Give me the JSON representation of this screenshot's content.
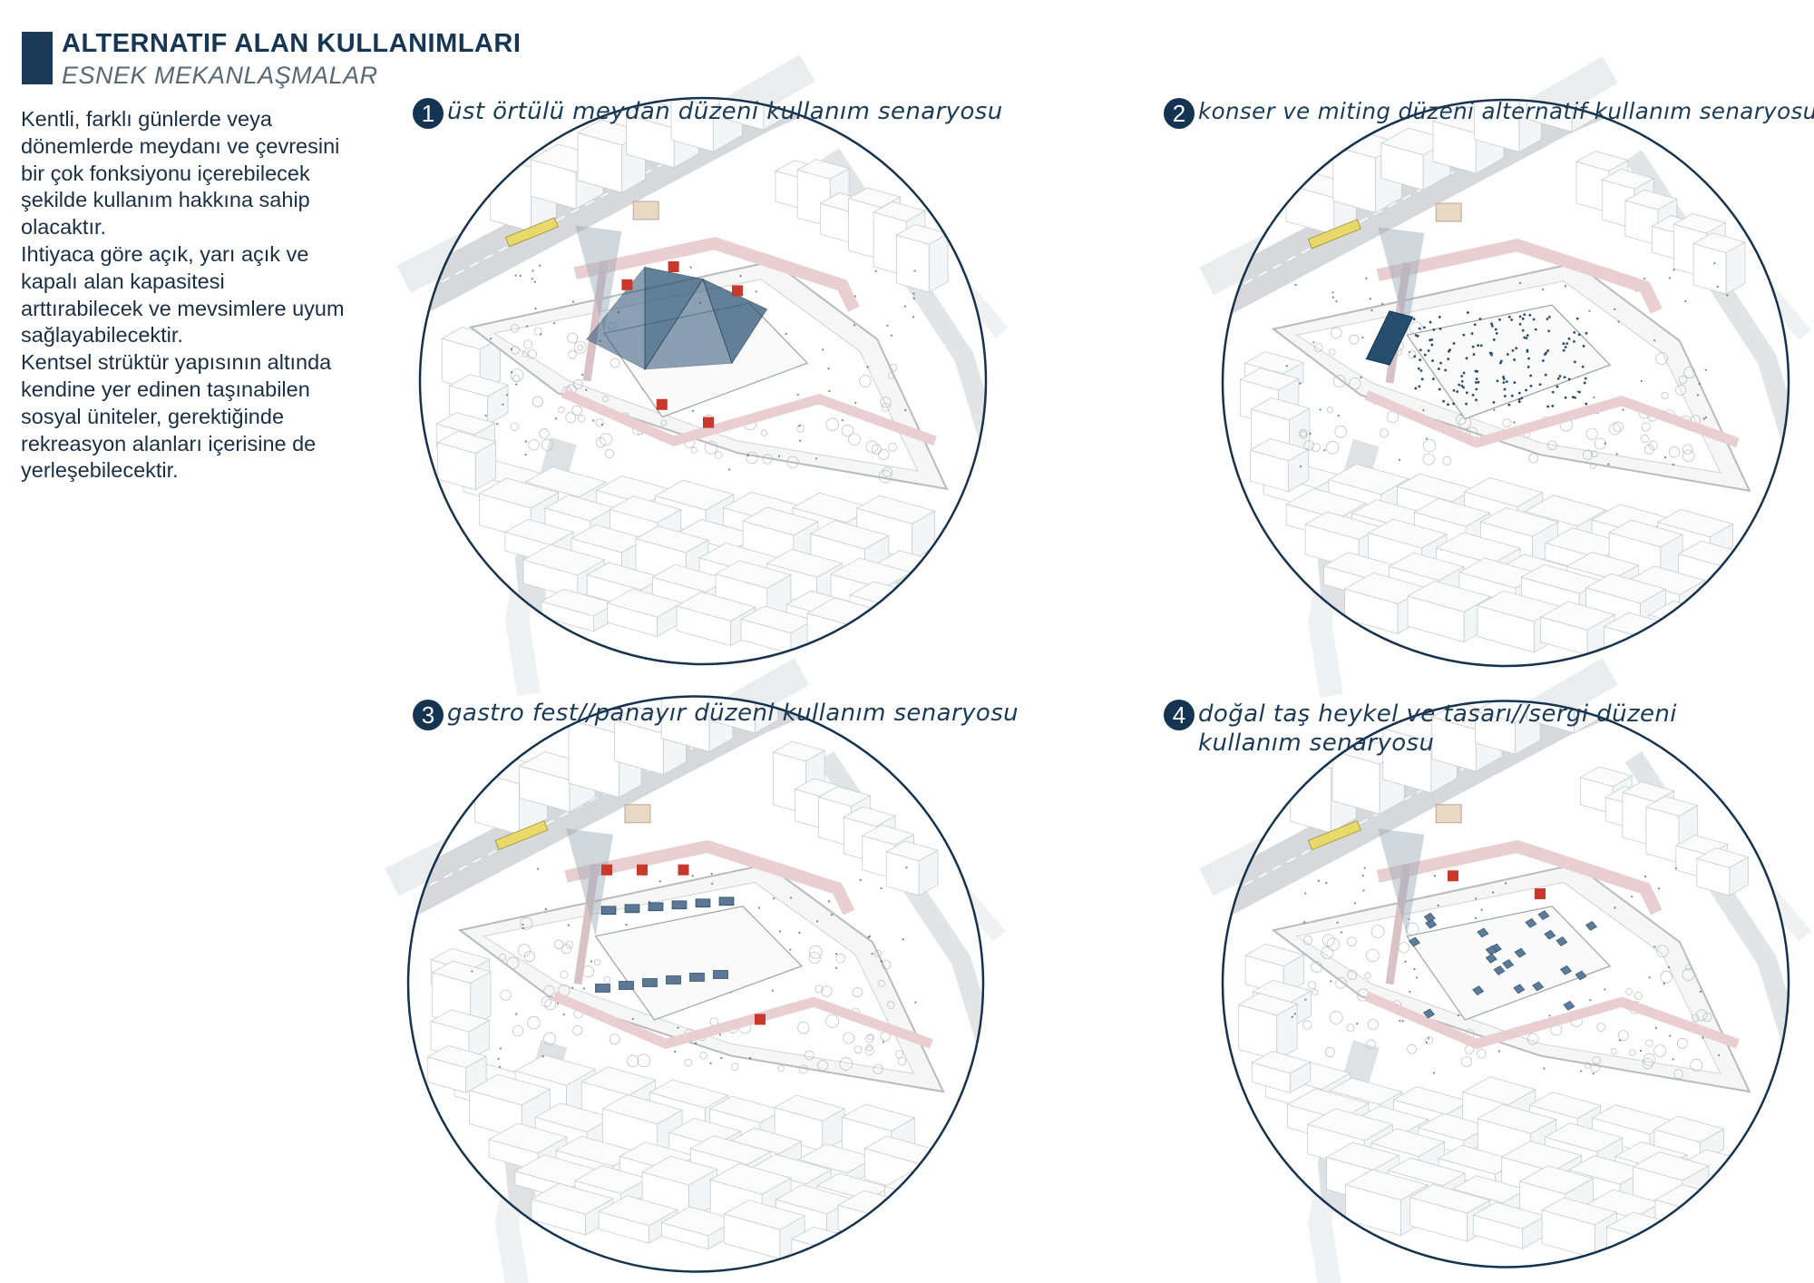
{
  "header": {
    "title": "ALTERNATIF ALAN KULLANIMLARI",
    "subtitle": "ESNEK MEKANLAŞMALAR"
  },
  "intro_lines": [
    "Kentli, farklı günlerde veya",
    "dönemlerde meydanı ve çevresini",
    "bir çok fonksiyonu içerebilecek",
    "şekilde kullanım hakkına sahip",
    "olacaktır.",
    "Ihtiyaca göre açık, yarı açık ve",
    "kapalı alan kapasitesi",
    "arttırabilecek ve mevsimlere uyum",
    "sağlayabilecektir.",
    "Kentsel strüktür yapısının altında",
    "kendine yer edinen taşınabilen",
    "sosyal üniteler, gerektiğinde",
    "rekreasyon alanları içerisine de",
    "yerleşebilecektir."
  ],
  "scenarios": [
    {
      "number": "1",
      "label": "üst örtülü meydan düzeni kullanım senaryosu",
      "overlay": "canopy"
    },
    {
      "number": "2",
      "label": "konser ve miting düzeni alternatif kullanım senaryosu",
      "overlay": "concert"
    },
    {
      "number": "3",
      "label": "gastro fest//panayır düzeni kullanım senaryosu",
      "overlay": "stalls"
    },
    {
      "number": "4",
      "label": "doğal taş heykel ve tasarı//sergi düzeni kullanım senaryosu",
      "overlay": "sculptures"
    }
  ],
  "colors": {
    "accent": "#143452",
    "pink_walkway": "#e9cfd2",
    "red_units": "#c8392b",
    "canopy": "#2e5676",
    "tram": "#e9d86a"
  }
}
